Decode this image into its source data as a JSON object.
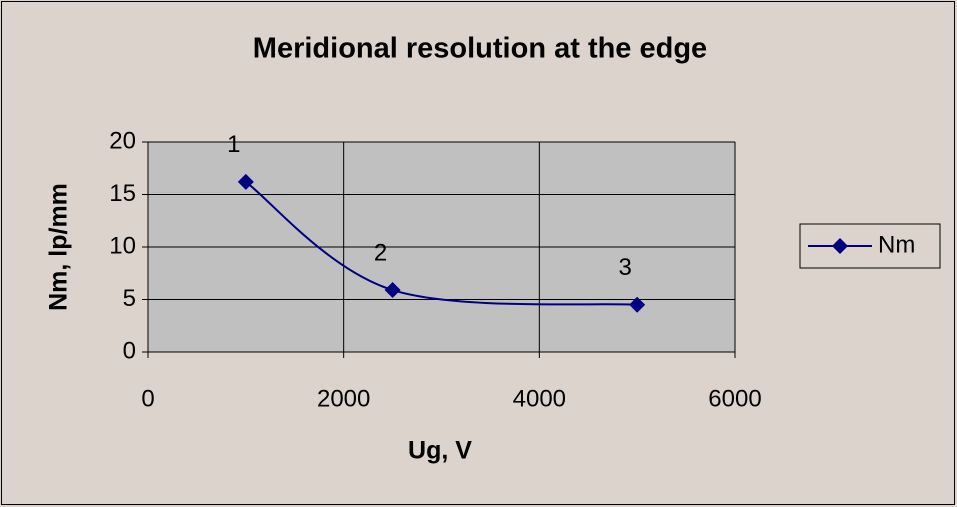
{
  "chart_data": {
    "type": "line",
    "title": "Meridional resolution at the edge",
    "x_label": "Ug, V",
    "y_label": "Nm, lp/mm",
    "x": [
      1000,
      2500,
      5000
    ],
    "series": [
      {
        "name": "Nm",
        "color": "#000080",
        "values": [
          16.2,
          5.9,
          4.5
        ]
      }
    ],
    "point_labels": [
      "1",
      "2",
      "3"
    ],
    "xlim": [
      0,
      6000
    ],
    "xticks": [
      0,
      2000,
      4000,
      6000
    ],
    "ylim": [
      0,
      20
    ],
    "yticks": [
      0,
      5,
      10,
      15,
      20
    ],
    "grid": true,
    "smooth": true,
    "legend": "right"
  }
}
